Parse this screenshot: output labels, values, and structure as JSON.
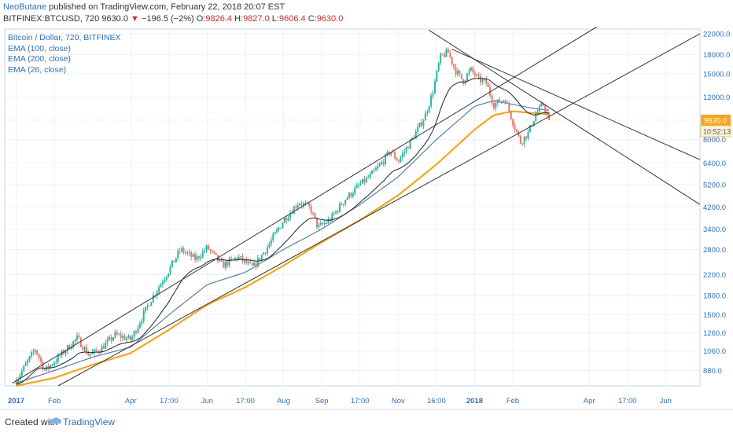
{
  "header": {
    "author": "NeoButane",
    "publish_text": "published on TradingView.com, February 22, 2018 20:07 EST",
    "symbol": "BITFINEX:BTCUSD, 720",
    "last": "9630.0",
    "change": "−196.5 (−2%)",
    "ohlc_open_label": "O:",
    "ohlc_open": "9826.4",
    "ohlc_high_label": "H:",
    "ohlc_high": "9827.0",
    "ohlc_low_label": "L:",
    "ohlc_low": "9606.4",
    "ohlc_close_label": "C:",
    "ohlc_close": "9630.0"
  },
  "legend": {
    "title": "Bitcoin / Dollar, 720, BITFINEX",
    "items": [
      "EMA (100, close)",
      "EMA (200, close)",
      "EMA (26, close)"
    ]
  },
  "footer": {
    "created_with": "Created with",
    "brand": "TradingView"
  },
  "colors": {
    "up": "#2bb5a3",
    "down": "#e07a6a",
    "ema100": "#5a7fa6",
    "ema200": "#f2a622",
    "ema26": "#222222",
    "axis": "#2f6fb8",
    "trendline": "#333333",
    "price_badge": "#f2a622"
  },
  "chart_data": {
    "type": "candlestick",
    "scale": "log",
    "y_ticks": [
      880,
      1060,
      1260,
      1500,
      1800,
      2200,
      2800,
      3400,
      4200,
      5200,
      6400,
      8000,
      12000,
      15000,
      18000,
      22000
    ],
    "y_tick_labels": [
      "880.0",
      "1060.0",
      "1260.0",
      "1500.0",
      "1800.0",
      "2200.0",
      "2800.0",
      "3400.0",
      "4200.0",
      "5200.0",
      "6400.0",
      "8000.0",
      "12000.0",
      "15000.0",
      "18000.0",
      "22000.0"
    ],
    "ylim": [
      760,
      23000
    ],
    "x_ticks": [
      {
        "t": 0,
        "label": "2017",
        "bold": true
      },
      {
        "t": 1.0,
        "label": "Feb"
      },
      {
        "t": 3.0,
        "label": "Apr"
      },
      {
        "t": 4.0,
        "label": "17:00"
      },
      {
        "t": 5.0,
        "label": "Jun"
      },
      {
        "t": 6.0,
        "label": "17:00"
      },
      {
        "t": 7.0,
        "label": "Aug"
      },
      {
        "t": 8.0,
        "label": "Sep"
      },
      {
        "t": 9.0,
        "label": "17:00"
      },
      {
        "t": 10.0,
        "label": "Nov"
      },
      {
        "t": 11.0,
        "label": "16:00"
      },
      {
        "t": 12.0,
        "label": "2018",
        "bold": true
      },
      {
        "t": 13.0,
        "label": "Feb"
      },
      {
        "t": 15.0,
        "label": "Apr"
      },
      {
        "t": 16.0,
        "label": "17:00"
      },
      {
        "t": 17.0,
        "label": "Jun"
      }
    ],
    "xlim": [
      -0.3,
      17.9
    ],
    "anchors": [
      [
        0,
        800
      ],
      [
        0.5,
        1080
      ],
      [
        0.75,
        880
      ],
      [
        1.0,
        960
      ],
      [
        1.6,
        1200
      ],
      [
        1.9,
        1020
      ],
      [
        2.2,
        1080
      ],
      [
        2.6,
        1240
      ],
      [
        3.0,
        1180
      ],
      [
        3.5,
        1700
      ],
      [
        4.0,
        2300
      ],
      [
        4.3,
        2800
      ],
      [
        4.7,
        2550
      ],
      [
        5.0,
        2850
      ],
      [
        5.4,
        2400
      ],
      [
        5.8,
        2600
      ],
      [
        6.2,
        2350
      ],
      [
        6.6,
        2900
      ],
      [
        7.0,
        3700
      ],
      [
        7.4,
        4400
      ],
      [
        7.7,
        4150
      ],
      [
        7.9,
        3450
      ],
      [
        8.2,
        3700
      ],
      [
        8.6,
        4500
      ],
      [
        9.0,
        5200
      ],
      [
        9.3,
        5700
      ],
      [
        9.6,
        6500
      ],
      [
        9.8,
        7200
      ],
      [
        10.0,
        6500
      ],
      [
        10.4,
        8200
      ],
      [
        10.7,
        10000
      ],
      [
        10.9,
        12500
      ],
      [
        11.1,
        17500
      ],
      [
        11.3,
        18500
      ],
      [
        11.5,
        15500
      ],
      [
        11.7,
        14000
      ],
      [
        11.9,
        15600
      ],
      [
        12.1,
        14200
      ],
      [
        12.3,
        13800
      ],
      [
        12.5,
        11200
      ],
      [
        12.8,
        11800
      ],
      [
        13.0,
        9500
      ],
      [
        13.2,
        7800
      ],
      [
        13.4,
        8500
      ],
      [
        13.6,
        10200
      ],
      [
        13.8,
        11200
      ],
      [
        13.95,
        9630
      ]
    ],
    "ema100": [
      [
        0,
        780
      ],
      [
        1,
        880
      ],
      [
        2,
        1000
      ],
      [
        3,
        1100
      ],
      [
        4,
        1500
      ],
      [
        5,
        2000
      ],
      [
        6,
        2250
      ],
      [
        7,
        2800
      ],
      [
        8,
        3400
      ],
      [
        9,
        4300
      ],
      [
        10,
        5600
      ],
      [
        11,
        8000
      ],
      [
        12,
        11000
      ],
      [
        12.5,
        11600
      ],
      [
        13,
        11200
      ],
      [
        13.5,
        10800
      ],
      [
        13.95,
        10600
      ]
    ],
    "ema200": [
      [
        0,
        760
      ],
      [
        1,
        820
      ],
      [
        2,
        930
      ],
      [
        3,
        1040
      ],
      [
        4,
        1300
      ],
      [
        5,
        1650
      ],
      [
        6,
        1950
      ],
      [
        7,
        2400
      ],
      [
        8,
        3000
      ],
      [
        9,
        3700
      ],
      [
        10,
        4700
      ],
      [
        11,
        6300
      ],
      [
        12,
        8800
      ],
      [
        12.5,
        10100
      ],
      [
        13,
        10500
      ],
      [
        13.5,
        10300
      ],
      [
        13.95,
        10200
      ]
    ],
    "trendlines": [
      {
        "p1": [
          -0.1,
          780
        ],
        "p2": [
          15.2,
          23500
        ]
      },
      {
        "p1": [
          1.1,
          760
        ],
        "p2": [
          17.9,
          22000
        ]
      },
      {
        "p1": [
          10.8,
          22800
        ],
        "p2": [
          17.9,
          4300
        ]
      },
      {
        "p1": [
          11.4,
          19000
        ],
        "p2": [
          17.9,
          6600
        ]
      }
    ],
    "last_price": {
      "value": 9630,
      "label": "9630.0",
      "countdown": "10:52:13"
    }
  }
}
